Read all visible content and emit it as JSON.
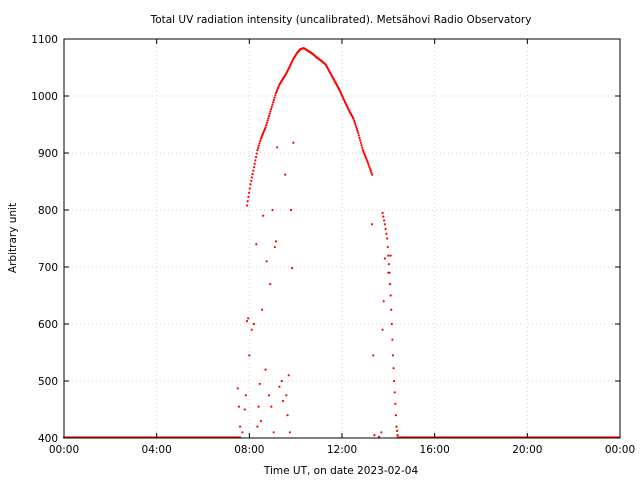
{
  "chart_data": {
    "type": "scatter",
    "title": "Total UV radiation intensity (uncalibrated). Metsähovi Radio Observatory",
    "xlabel": "Time UT, on date 2023-02-04",
    "ylabel": "Arbitrary unit",
    "x_unit": "hours UT",
    "xlim": [
      0,
      24
    ],
    "ylim": [
      400,
      1100
    ],
    "xticks": [
      {
        "value": 0,
        "label": "00:00"
      },
      {
        "value": 4,
        "label": "04:00"
      },
      {
        "value": 8,
        "label": "08:00"
      },
      {
        "value": 12,
        "label": "12:00"
      },
      {
        "value": 16,
        "label": "16:00"
      },
      {
        "value": 20,
        "label": "20:00"
      },
      {
        "value": 24,
        "label": "00:00"
      }
    ],
    "yticks": [
      400,
      500,
      600,
      700,
      800,
      900,
      1000,
      1100
    ],
    "grid": true,
    "legend": "none",
    "marker_color": "#ff0000",
    "series": [
      {
        "baseline": {
          "x_start": 0,
          "x_end": 24,
          "y": 401
        },
        "main_curve": [
          [
            7.9,
            808
          ],
          [
            8.05,
            845
          ],
          [
            8.2,
            875
          ],
          [
            8.35,
            905
          ],
          [
            8.5,
            925
          ],
          [
            8.7,
            945
          ],
          [
            8.85,
            965
          ],
          [
            9.0,
            985
          ],
          [
            9.15,
            1005
          ],
          [
            9.3,
            1020
          ],
          [
            9.45,
            1030
          ],
          [
            9.6,
            1040
          ],
          [
            9.75,
            1052
          ],
          [
            9.9,
            1065
          ],
          [
            10.05,
            1075
          ],
          [
            10.2,
            1082
          ],
          [
            10.35,
            1084
          ],
          [
            10.5,
            1080
          ],
          [
            10.7,
            1075
          ],
          [
            10.9,
            1068
          ],
          [
            11.1,
            1062
          ],
          [
            11.3,
            1055
          ],
          [
            11.5,
            1040
          ],
          [
            11.7,
            1025
          ],
          [
            11.9,
            1010
          ],
          [
            12.1,
            992
          ],
          [
            12.3,
            975
          ],
          [
            12.5,
            960
          ],
          [
            12.7,
            935
          ],
          [
            12.9,
            905
          ],
          [
            13.1,
            885
          ],
          [
            13.3,
            862
          ]
        ],
        "afternoon_curve": [
          [
            13.75,
            795
          ],
          [
            13.85,
            775
          ],
          [
            13.95,
            750
          ],
          [
            14.0,
            720
          ],
          [
            14.05,
            690
          ],
          [
            14.1,
            650
          ],
          [
            14.15,
            600
          ],
          [
            14.2,
            545
          ],
          [
            14.25,
            500
          ],
          [
            14.3,
            460
          ],
          [
            14.35,
            420
          ],
          [
            14.4,
            405
          ]
        ],
        "scatter_points": [
          [
            7.5,
            487
          ],
          [
            7.55,
            455
          ],
          [
            7.6,
            420
          ],
          [
            7.7,
            410
          ],
          [
            7.8,
            450
          ],
          [
            7.85,
            475
          ],
          [
            7.9,
            605
          ],
          [
            7.95,
            610
          ],
          [
            8.0,
            545
          ],
          [
            8.1,
            590
          ],
          [
            8.2,
            600
          ],
          [
            8.3,
            740
          ],
          [
            8.35,
            420
          ],
          [
            8.4,
            455
          ],
          [
            8.45,
            495
          ],
          [
            8.5,
            430
          ],
          [
            8.55,
            625
          ],
          [
            8.6,
            790
          ],
          [
            8.7,
            520
          ],
          [
            8.75,
            710
          ],
          [
            8.85,
            475
          ],
          [
            8.9,
            670
          ],
          [
            8.95,
            455
          ],
          [
            9.0,
            800
          ],
          [
            9.05,
            410
          ],
          [
            9.1,
            735
          ],
          [
            9.15,
            745
          ],
          [
            9.2,
            910
          ],
          [
            9.3,
            490
          ],
          [
            9.4,
            500
          ],
          [
            9.45,
            465
          ],
          [
            9.55,
            862
          ],
          [
            9.6,
            475
          ],
          [
            9.65,
            440
          ],
          [
            9.7,
            510
          ],
          [
            9.75,
            410
          ],
          [
            9.8,
            800
          ],
          [
            9.85,
            698
          ],
          [
            9.9,
            918
          ],
          [
            13.3,
            775
          ],
          [
            13.35,
            545
          ],
          [
            13.4,
            405
          ],
          [
            13.6,
            402
          ],
          [
            13.7,
            410
          ],
          [
            13.75,
            590
          ],
          [
            13.8,
            640
          ],
          [
            13.85,
            715
          ],
          [
            14.0,
            690
          ],
          [
            14.1,
            720
          ]
        ]
      }
    ]
  }
}
